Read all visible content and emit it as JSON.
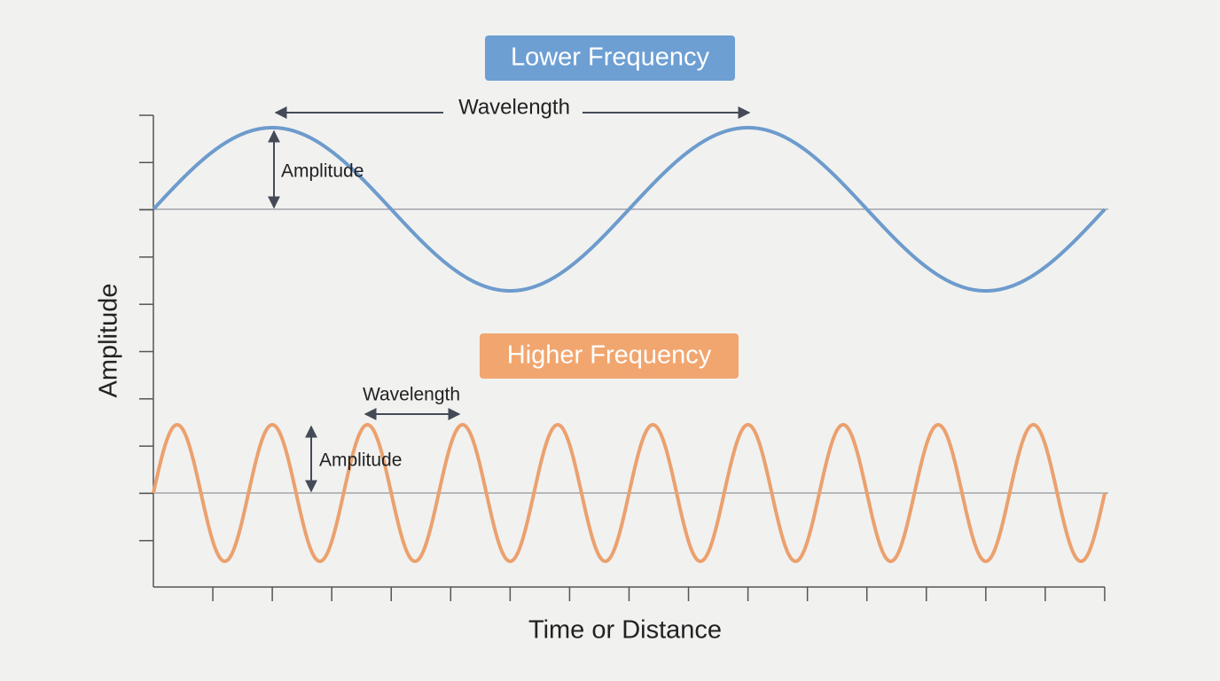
{
  "lower": {
    "title": "Lower Frequency",
    "wavelength_label": "Wavelength",
    "amplitude_label": "Amplitude"
  },
  "higher": {
    "title": "Higher Frequency",
    "wavelength_label": "Wavelength",
    "amplitude_label": "Amplitude"
  },
  "axes": {
    "y_label": "Amplitude",
    "x_label": "Time or Distance"
  }
}
